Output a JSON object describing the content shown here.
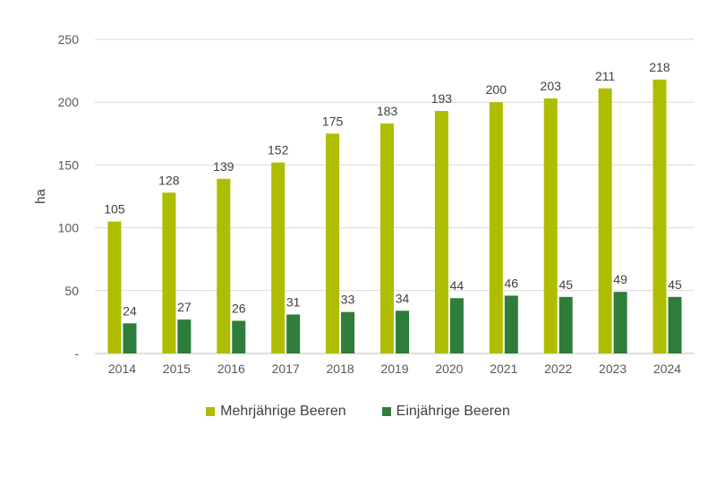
{
  "chart_data": {
    "type": "bar",
    "categories": [
      "2014",
      "2015",
      "2016",
      "2017",
      "2018",
      "2019",
      "2020",
      "2021",
      "2022",
      "2023",
      "2024"
    ],
    "series": [
      {
        "name": "Mehrjährige Beeren",
        "values": [
          105,
          128,
          139,
          152,
          175,
          183,
          193,
          200,
          203,
          211,
          218
        ],
        "color": "#aebd00"
      },
      {
        "name": "Einjährige Beeren",
        "values": [
          24,
          27,
          26,
          31,
          33,
          34,
          44,
          46,
          45,
          49,
          45
        ],
        "color": "#2e7d3a"
      }
    ],
    "ylabel": "ha",
    "ylim": [
      0,
      250
    ],
    "yticks": [
      "-",
      "50",
      "100",
      "150",
      "200",
      "250"
    ],
    "grid": true,
    "legend": "bottom"
  }
}
